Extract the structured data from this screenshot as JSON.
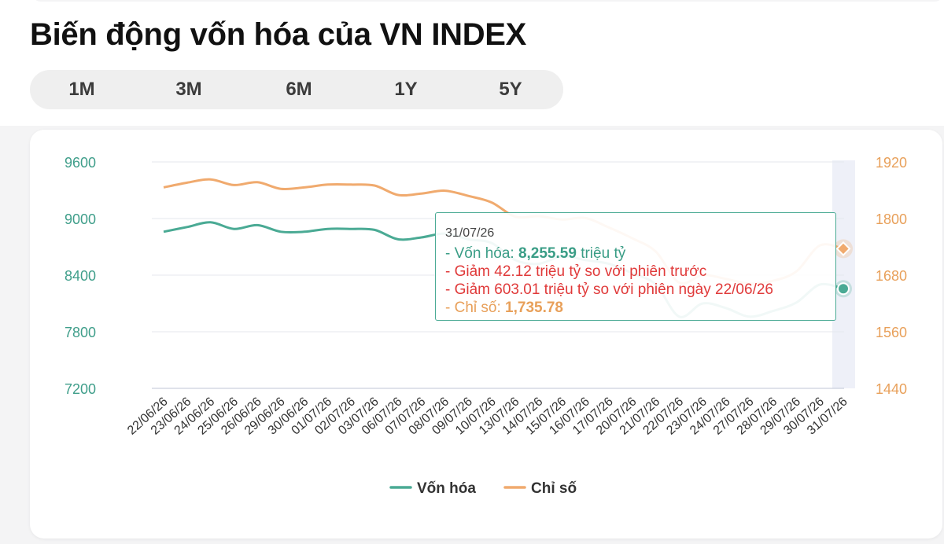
{
  "title": "Biến động vốn hóa của VN INDEX",
  "tabs": [
    {
      "label": "1M",
      "active": false
    },
    {
      "label": "3M",
      "active": false
    },
    {
      "label": "6M",
      "active": false
    },
    {
      "label": "1Y",
      "active": true
    },
    {
      "label": "5Y",
      "active": false
    }
  ],
  "tooltip": {
    "date": "31/07/26",
    "cap_prefix": "- Vốn hóa: ",
    "cap_value": "8,255.59",
    "cap_unit": " triệu tỷ",
    "change_prev": "- Giảm 42.12 triệu tỷ so với phiên trước",
    "change_start": "- Giảm 603.01 triệu tỷ so với phiên ngày 22/06/26",
    "index_prefix": "- Chỉ số: ",
    "index_value": "1,735.78"
  },
  "chart_data": {
    "type": "line",
    "categories": [
      "22/06/26",
      "23/06/26",
      "24/06/26",
      "25/06/26",
      "26/06/26",
      "29/06/26",
      "30/06/26",
      "01/07/26",
      "02/07/26",
      "03/07/26",
      "06/07/26",
      "07/07/26",
      "08/07/26",
      "09/07/26",
      "10/07/26",
      "13/07/26",
      "14/07/26",
      "15/07/26",
      "16/07/26",
      "17/07/26",
      "20/07/26",
      "21/07/26",
      "22/07/26",
      "23/07/26",
      "24/07/26",
      "27/07/26",
      "28/07/26",
      "29/07/26",
      "30/07/26",
      "31/07/26"
    ],
    "series": [
      {
        "name": "Vốn hóa",
        "axis": "left",
        "color": "#4aaa94",
        "values": [
          8860,
          8910,
          8960,
          8890,
          8930,
          8860,
          8860,
          8890,
          8890,
          8880,
          8780,
          8800,
          8840,
          8780,
          8740,
          8560,
          8520,
          8600,
          8560,
          8520,
          8420,
          8300,
          7960,
          8100,
          8050,
          7960,
          8020,
          8110,
          8300,
          8256
        ]
      },
      {
        "name": "Chỉ số",
        "axis": "right",
        "color": "#f0aa6e",
        "values": [
          1866,
          1876,
          1883,
          1871,
          1877,
          1863,
          1866,
          1872,
          1872,
          1870,
          1850,
          1853,
          1859,
          1848,
          1834,
          1804,
          1805,
          1798,
          1801,
          1781,
          1758,
          1730,
          1664,
          1680,
          1672,
          1662,
          1668,
          1688,
          1743,
          1736
        ]
      }
    ],
    "y_left": {
      "min": 7200,
      "max": 9600,
      "ticks": [
        7200,
        7800,
        8400,
        9000,
        9600
      ]
    },
    "y_right": {
      "min": 1440,
      "max": 1920,
      "ticks": [
        1440,
        1560,
        1680,
        1800,
        1920
      ]
    },
    "highlight_index": 29,
    "legend_position": "bottom-center",
    "grid": true
  }
}
